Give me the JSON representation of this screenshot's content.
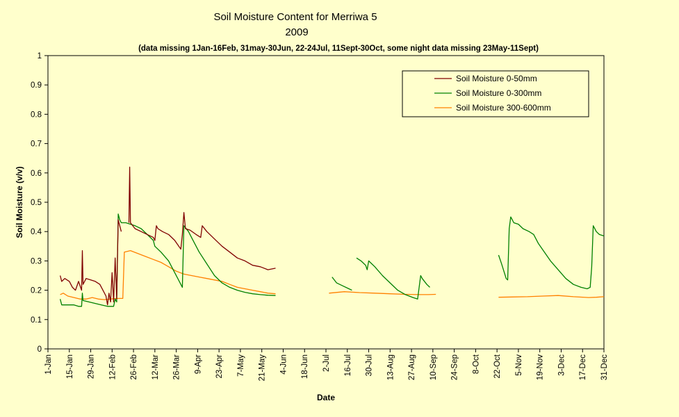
{
  "chart_data": {
    "type": "line",
    "title": "Soil Moisture Content for Merriwa 5",
    "subtitle": "2009",
    "note": "(data missing 1Jan-16Feb, 31may-30Jun, 22-24Jul, 11Sept-30Oct, some night data missing 23May-11Sept)",
    "xlabel": "Date",
    "ylabel": "Soil Moisture (v/v)",
    "xlim": [
      1,
      365
    ],
    "ylim": [
      0,
      1
    ],
    "y_ticks": [
      "0",
      "0.1",
      "0.2",
      "0.3",
      "0.4",
      "0.5",
      "0.6",
      "0.7",
      "0.8",
      "0.9",
      "1"
    ],
    "x_ticks": [
      {
        "label": "1-Jan",
        "day": 1
      },
      {
        "label": "15-Jan",
        "day": 15
      },
      {
        "label": "29-Jan",
        "day": 29
      },
      {
        "label": "12-Feb",
        "day": 43
      },
      {
        "label": "26-Feb",
        "day": 57
      },
      {
        "label": "12-Mar",
        "day": 71
      },
      {
        "label": "26-Mar",
        "day": 85
      },
      {
        "label": "9-Apr",
        "day": 99
      },
      {
        "label": "23-Apr",
        "day": 113
      },
      {
        "label": "7-May",
        "day": 127
      },
      {
        "label": "21-May",
        "day": 141
      },
      {
        "label": "4-Jun",
        "day": 155
      },
      {
        "label": "18-Jun",
        "day": 169
      },
      {
        "label": "2-Jul",
        "day": 183
      },
      {
        "label": "16-Jul",
        "day": 197
      },
      {
        "label": "30-Jul",
        "day": 211
      },
      {
        "label": "13-Aug",
        "day": 225
      },
      {
        "label": "27-Aug",
        "day": 239
      },
      {
        "label": "10-Sep",
        "day": 253
      },
      {
        "label": "24-Sep",
        "day": 267
      },
      {
        "label": "8-Oct",
        "day": 281
      },
      {
        "label": "22-Oct",
        "day": 295
      },
      {
        "label": "5-Nov",
        "day": 309
      },
      {
        "label": "19-Nov",
        "day": 323
      },
      {
        "label": "3-Dec",
        "day": 337
      },
      {
        "label": "17-Dec",
        "day": 351
      },
      {
        "label": "31-Dec",
        "day": 365
      }
    ],
    "legend_position": "top-right",
    "series": [
      {
        "name": "Soil Moisture 0-50mm",
        "color": "#800000",
        "segments": [
          [
            [
              9,
              0.25
            ],
            [
              10,
              0.23
            ],
            [
              12,
              0.24
            ],
            [
              15,
              0.23
            ],
            [
              17,
              0.21
            ],
            [
              19,
              0.2
            ],
            [
              21,
              0.23
            ],
            [
              23,
              0.2
            ],
            [
              23.5,
              0.335
            ],
            [
              24,
              0.22
            ],
            [
              26,
              0.24
            ],
            [
              29,
              0.235
            ],
            [
              32,
              0.23
            ],
            [
              35,
              0.22
            ],
            [
              37,
              0.2
            ],
            [
              39,
              0.18
            ],
            [
              40,
              0.15
            ],
            [
              41,
              0.19
            ],
            [
              42,
              0.16
            ],
            [
              43,
              0.26
            ],
            [
              44,
              0.16
            ],
            [
              45,
              0.31
            ],
            [
              46,
              0.17
            ],
            [
              47,
              0.44
            ],
            [
              48,
              0.42
            ],
            [
              49,
              0.4
            ]
          ],
          [
            [
              54,
              0.43
            ],
            [
              54.5,
              0.62
            ],
            [
              55,
              0.43
            ],
            [
              58,
              0.41
            ],
            [
              62,
              0.4
            ],
            [
              66,
              0.39
            ],
            [
              70,
              0.38
            ],
            [
              71,
              0.37
            ],
            [
              72,
              0.42
            ],
            [
              73,
              0.41
            ],
            [
              76,
              0.4
            ],
            [
              80,
              0.39
            ],
            [
              84,
              0.37
            ],
            [
              88,
              0.34
            ],
            [
              89,
              0.39
            ],
            [
              90,
              0.465
            ],
            [
              91,
              0.41
            ],
            [
              94,
              0.405
            ],
            [
              98,
              0.39
            ],
            [
              101,
              0.38
            ],
            [
              102,
              0.42
            ],
            [
              105,
              0.4
            ],
            [
              110,
              0.375
            ],
            [
              115,
              0.35
            ],
            [
              120,
              0.33
            ],
            [
              125,
              0.31
            ],
            [
              130,
              0.3
            ],
            [
              135,
              0.285
            ],
            [
              140,
              0.28
            ],
            [
              145,
              0.27
            ],
            [
              150,
              0.275
            ]
          ]
        ]
      },
      {
        "name": "Soil Moisture 0-300mm",
        "color": "#008000",
        "segments": [
          [
            [
              9,
              0.17
            ],
            [
              10,
              0.15
            ],
            [
              14,
              0.15
            ],
            [
              18,
              0.15
            ],
            [
              21,
              0.145
            ],
            [
              23,
              0.145
            ],
            [
              23.5,
              0.19
            ],
            [
              24,
              0.165
            ],
            [
              28,
              0.16
            ],
            [
              32,
              0.155
            ],
            [
              36,
              0.15
            ],
            [
              40,
              0.145
            ],
            [
              44,
              0.145
            ],
            [
              45,
              0.17
            ],
            [
              46,
              0.16
            ],
            [
              47,
              0.46
            ],
            [
              48,
              0.44
            ],
            [
              49,
              0.43
            ],
            [
              52,
              0.43
            ],
            [
              55,
              0.425
            ],
            [
              58,
              0.42
            ],
            [
              62,
              0.41
            ],
            [
              66,
              0.39
            ],
            [
              70,
              0.37
            ],
            [
              71,
              0.35
            ],
            [
              75,
              0.33
            ],
            [
              80,
              0.3
            ],
            [
              84,
              0.26
            ],
            [
              87,
              0.23
            ],
            [
              89,
              0.21
            ],
            [
              90,
              0.42
            ],
            [
              93,
              0.4
            ],
            [
              96,
              0.37
            ],
            [
              100,
              0.33
            ],
            [
              105,
              0.29
            ],
            [
              110,
              0.25
            ],
            [
              115,
              0.225
            ],
            [
              120,
              0.21
            ],
            [
              125,
              0.2
            ],
            [
              130,
              0.193
            ],
            [
              135,
              0.188
            ],
            [
              140,
              0.185
            ],
            [
              145,
              0.183
            ],
            [
              150,
              0.182
            ]
          ],
          [
            [
              187,
              0.245
            ],
            [
              190,
              0.225
            ],
            [
              194,
              0.215
            ],
            [
              198,
              0.205
            ],
            [
              200,
              0.2
            ]
          ],
          [
            [
              203,
              0.31
            ],
            [
              206,
              0.3
            ],
            [
              209,
              0.285
            ],
            [
              210,
              0.27
            ],
            [
              211,
              0.3
            ],
            [
              215,
              0.28
            ],
            [
              220,
              0.25
            ],
            [
              225,
              0.225
            ],
            [
              230,
              0.2
            ],
            [
              235,
              0.185
            ],
            [
              240,
              0.175
            ],
            [
              243,
              0.17
            ],
            [
              245,
              0.25
            ],
            [
              246,
              0.24
            ],
            [
              249,
              0.22
            ],
            [
              251,
              0.21
            ]
          ],
          [
            [
              296,
              0.32
            ],
            [
              298,
              0.29
            ],
            [
              301,
              0.24
            ],
            [
              302,
              0.235
            ],
            [
              303,
              0.41
            ],
            [
              304,
              0.45
            ],
            [
              306,
              0.43
            ],
            [
              309,
              0.425
            ],
            [
              312,
              0.41
            ],
            [
              316,
              0.4
            ],
            [
              319,
              0.39
            ],
            [
              322,
              0.36
            ],
            [
              326,
              0.33
            ],
            [
              330,
              0.3
            ],
            [
              335,
              0.27
            ],
            [
              340,
              0.24
            ],
            [
              345,
              0.22
            ],
            [
              350,
              0.21
            ],
            [
              354,
              0.205
            ],
            [
              356,
              0.21
            ],
            [
              357,
              0.28
            ],
            [
              358,
              0.42
            ],
            [
              360,
              0.4
            ],
            [
              362,
              0.39
            ],
            [
              365,
              0.385
            ]
          ]
        ]
      },
      {
        "name": "Soil Moisture 300-600mm",
        "color": "#FF8000",
        "segments": [
          [
            [
              9,
              0.185
            ],
            [
              11,
              0.19
            ],
            [
              14,
              0.18
            ],
            [
              18,
              0.175
            ],
            [
              22,
              0.17
            ],
            [
              26,
              0.17
            ],
            [
              30,
              0.175
            ],
            [
              34,
              0.17
            ],
            [
              38,
              0.168
            ],
            [
              42,
              0.17
            ],
            [
              46,
              0.172
            ],
            [
              50,
              0.172
            ],
            [
              51,
              0.33
            ],
            [
              55,
              0.335
            ],
            [
              60,
              0.325
            ],
            [
              65,
              0.315
            ],
            [
              70,
              0.305
            ],
            [
              75,
              0.295
            ],
            [
              80,
              0.28
            ],
            [
              85,
              0.265
            ],
            [
              90,
              0.255
            ],
            [
              95,
              0.25
            ],
            [
              100,
              0.245
            ],
            [
              105,
              0.24
            ],
            [
              110,
              0.235
            ],
            [
              115,
              0.23
            ],
            [
              120,
              0.22
            ],
            [
              125,
              0.21
            ],
            [
              130,
              0.205
            ],
            [
              135,
              0.2
            ],
            [
              140,
              0.195
            ],
            [
              145,
              0.19
            ],
            [
              150,
              0.188
            ]
          ],
          [
            [
              185,
              0.19
            ],
            [
              195,
              0.195
            ],
            [
              205,
              0.192
            ],
            [
              215,
              0.19
            ],
            [
              225,
              0.188
            ],
            [
              235,
              0.186
            ],
            [
              245,
              0.185
            ],
            [
              250,
              0.185
            ],
            [
              255,
              0.186
            ]
          ],
          [
            [
              296,
              0.176
            ],
            [
              305,
              0.177
            ],
            [
              315,
              0.178
            ],
            [
              325,
              0.18
            ],
            [
              335,
              0.182
            ],
            [
              345,
              0.178
            ],
            [
              355,
              0.175
            ],
            [
              360,
              0.176
            ],
            [
              365,
              0.178
            ]
          ]
        ]
      }
    ]
  }
}
